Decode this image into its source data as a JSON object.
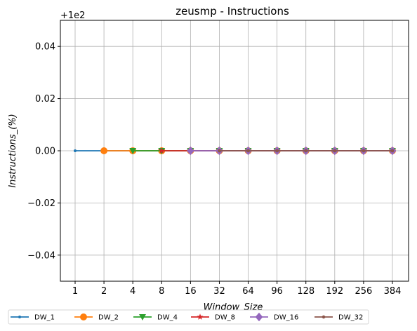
{
  "chart_data": {
    "type": "line",
    "title": "zeusmp - Instructions",
    "xlabel": "Window_Size",
    "ylabel": "Instructions_(%)",
    "offset_text": "+1e2",
    "categories": [
      "1",
      "2",
      "4",
      "8",
      "16",
      "32",
      "64",
      "96",
      "128",
      "192",
      "256",
      "384"
    ],
    "ylim": [
      -0.05,
      0.05
    ],
    "yticks": [
      -0.04,
      -0.02,
      0.0,
      0.02,
      0.04
    ],
    "ytick_labels": [
      "−0.04",
      "−0.02",
      "0.00",
      "0.02",
      "0.04"
    ],
    "grid": true,
    "legend_position": "bottom, below plot, 6 columns",
    "series": [
      {
        "name": "DW_1",
        "color": "#1f77b4",
        "marker": "point",
        "values": [
          0,
          0,
          0,
          0,
          0,
          0,
          0,
          0,
          0,
          0,
          0,
          0
        ]
      },
      {
        "name": "DW_2",
        "color": "#ff7f0e",
        "marker": "circle",
        "values": [
          null,
          0,
          0,
          0,
          0,
          0,
          0,
          0,
          0,
          0,
          0,
          0
        ]
      },
      {
        "name": "DW_4",
        "color": "#2ca02c",
        "marker": "triangle-down",
        "values": [
          null,
          null,
          0,
          0,
          0,
          0,
          0,
          0,
          0,
          0,
          0,
          0
        ]
      },
      {
        "name": "DW_8",
        "color": "#d62728",
        "marker": "star",
        "values": [
          null,
          null,
          null,
          0,
          0,
          0,
          0,
          0,
          0,
          0,
          0,
          0
        ]
      },
      {
        "name": "DW_16",
        "color": "#9467bd",
        "marker": "diamond",
        "values": [
          null,
          null,
          null,
          null,
          0,
          0,
          0,
          0,
          0,
          0,
          0,
          0
        ]
      },
      {
        "name": "DW_32",
        "color": "#8c564b",
        "marker": "hexagon",
        "values": [
          null,
          null,
          null,
          null,
          null,
          0,
          0,
          0,
          0,
          0,
          0,
          0
        ]
      }
    ]
  }
}
